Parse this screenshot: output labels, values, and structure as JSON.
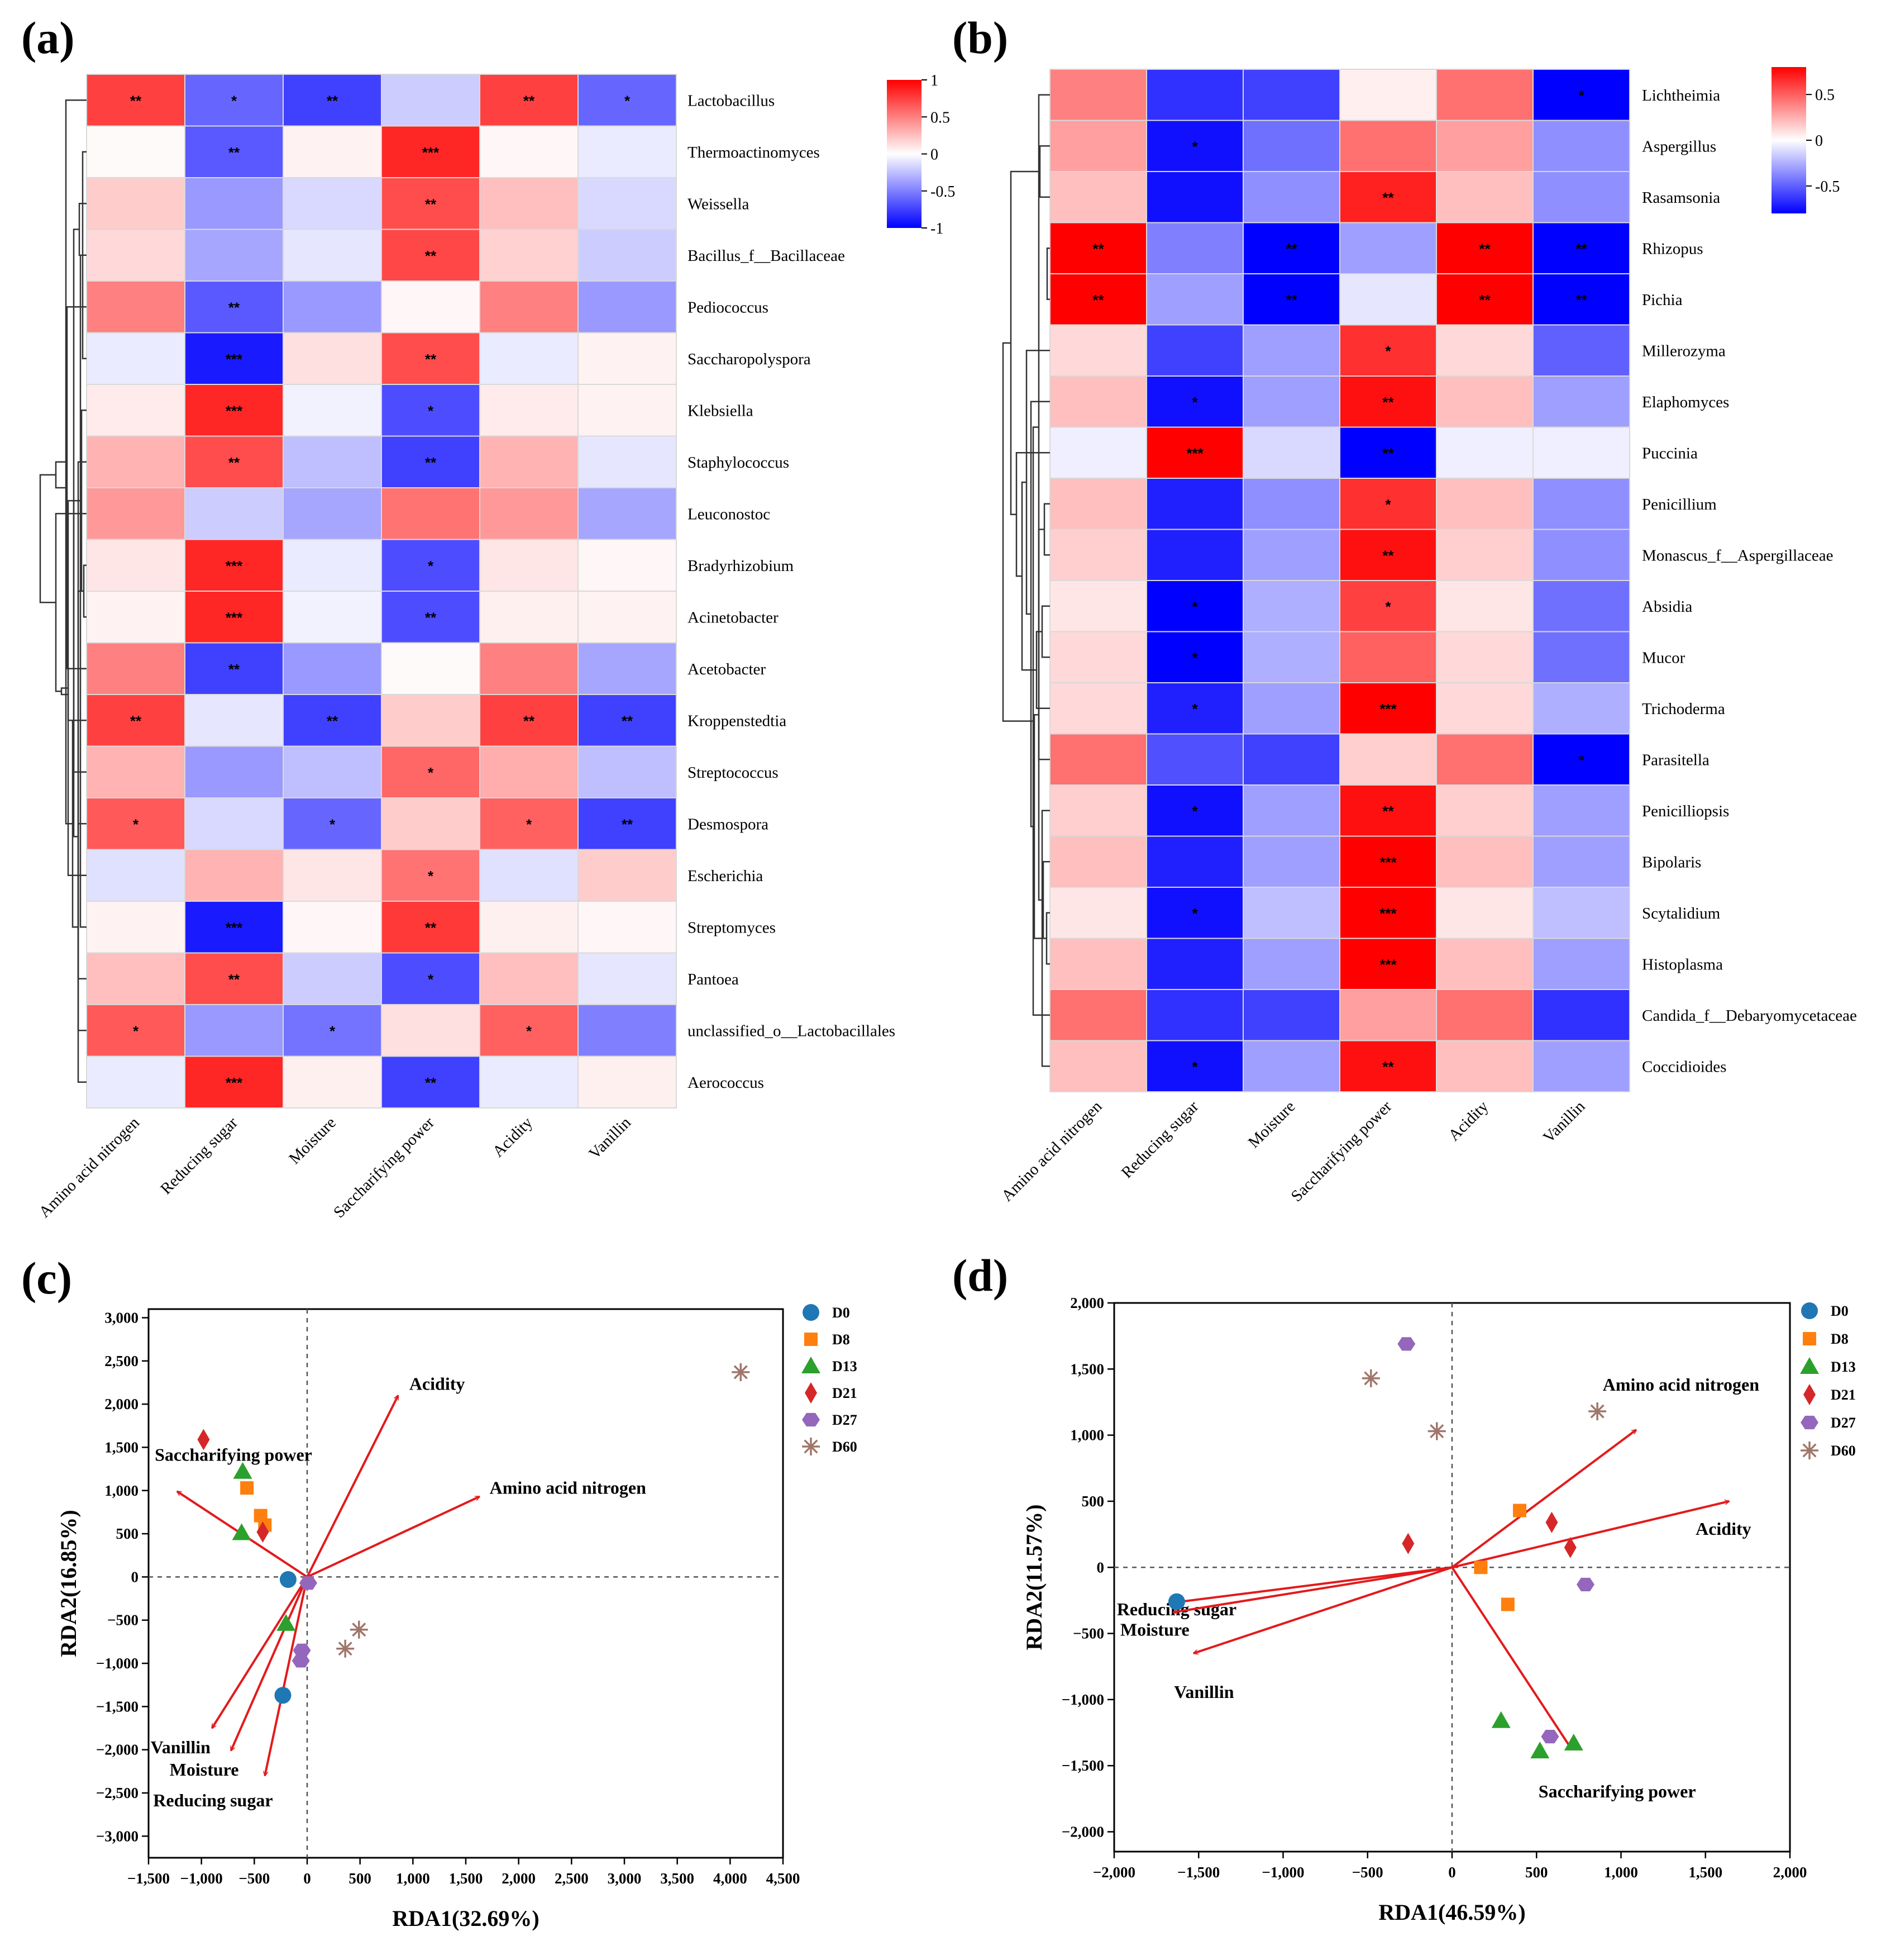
{
  "panels": {
    "a": "(a)",
    "b": "(b)",
    "c": "(c)",
    "d": "(d)"
  },
  "chart_data": [
    {
      "id": "a",
      "type": "heatmap",
      "columns": [
        "Amino acid nitrogen",
        "Reducing sugar",
        "Moisture",
        "Saccharifying power",
        "Acidity",
        "Vanillin"
      ],
      "rows": [
        "Lactobacillus",
        "Thermoactinomyces",
        "Weissella",
        "Bacillus_f__Bacillaceae",
        "Pediococcus",
        "Saccharopolyspora",
        "Klebsiella",
        "Staphylococcus",
        "Leuconostoc",
        "Bradyrhizobium",
        "Acinetobacter",
        "Acetobacter",
        "Kroppenstedtia",
        "Streptococcus",
        "Desmospora",
        "Escherichia",
        "Streptomyces",
        "Pantoea",
        "unclassified_o__Lactobacillales",
        "Aerococcus"
      ],
      "values": [
        [
          0.75,
          -0.6,
          -0.75,
          -0.2,
          0.75,
          -0.6
        ],
        [
          0.02,
          -0.65,
          0.05,
          0.85,
          0.03,
          -0.08
        ],
        [
          0.2,
          -0.4,
          -0.15,
          0.7,
          0.25,
          -0.15
        ],
        [
          0.15,
          -0.35,
          -0.1,
          0.72,
          0.18,
          -0.2
        ],
        [
          0.5,
          -0.65,
          -0.4,
          0.03,
          0.5,
          -0.4
        ],
        [
          -0.08,
          -0.9,
          0.12,
          0.7,
          -0.08,
          0.05
        ],
        [
          0.08,
          0.85,
          -0.05,
          -0.7,
          0.08,
          0.05
        ],
        [
          0.3,
          0.7,
          -0.25,
          -0.75,
          0.3,
          -0.1
        ],
        [
          0.4,
          -0.2,
          -0.35,
          0.55,
          0.4,
          -0.35
        ],
        [
          0.1,
          0.85,
          -0.08,
          -0.7,
          0.1,
          0.03
        ],
        [
          0.05,
          0.85,
          -0.05,
          -0.7,
          0.06,
          0.05
        ],
        [
          0.5,
          -0.75,
          -0.4,
          0.02,
          0.5,
          -0.35
        ],
        [
          0.75,
          -0.1,
          -0.75,
          0.2,
          0.75,
          -0.75
        ],
        [
          0.3,
          -0.4,
          -0.25,
          0.6,
          0.32,
          -0.25
        ],
        [
          0.65,
          -0.15,
          -0.6,
          0.2,
          0.62,
          -0.75
        ],
        [
          -0.12,
          0.3,
          0.1,
          0.55,
          -0.12,
          0.2
        ],
        [
          0.05,
          -0.9,
          0.03,
          0.78,
          0.06,
          0.03
        ],
        [
          0.25,
          0.7,
          -0.2,
          -0.7,
          0.25,
          -0.1
        ],
        [
          0.65,
          -0.4,
          -0.55,
          0.12,
          0.62,
          -0.5
        ],
        [
          -0.08,
          0.85,
          0.06,
          -0.75,
          -0.08,
          0.06
        ]
      ],
      "significance": [
        [
          "**",
          "*",
          "**",
          "",
          "**",
          "*"
        ],
        [
          "",
          "**",
          "",
          "***",
          "",
          ""
        ],
        [
          "",
          "",
          "",
          "**",
          "",
          ""
        ],
        [
          "",
          "",
          "",
          "**",
          "",
          ""
        ],
        [
          "",
          "**",
          "",
          "",
          "",
          ""
        ],
        [
          "",
          "***",
          "",
          "**",
          "",
          ""
        ],
        [
          "",
          "***",
          "",
          "*",
          "",
          ""
        ],
        [
          "",
          "**",
          "",
          "**",
          "",
          ""
        ],
        [
          "",
          "",
          "",
          "",
          "",
          ""
        ],
        [
          "",
          "***",
          "",
          "*",
          "",
          ""
        ],
        [
          "",
          "***",
          "",
          "**",
          "",
          ""
        ],
        [
          "",
          "**",
          "",
          "",
          "",
          ""
        ],
        [
          "**",
          "",
          "**",
          "",
          "**",
          "**"
        ],
        [
          "",
          "",
          "",
          "*",
          "",
          ""
        ],
        [
          "*",
          "",
          "*",
          "",
          "*",
          "**"
        ],
        [
          "",
          "",
          "",
          "*",
          "",
          ""
        ],
        [
          "",
          "***",
          "",
          "**",
          "",
          ""
        ],
        [
          "",
          "**",
          "",
          "*",
          "",
          ""
        ],
        [
          "*",
          "",
          "*",
          "",
          "*",
          ""
        ],
        [
          "",
          "***",
          "",
          "**",
          "",
          ""
        ]
      ],
      "colorbar": {
        "min": -1,
        "max": 1,
        "ticks": [
          "1",
          "0.5",
          "0",
          "-0.5",
          "-1"
        ],
        "low_color": "#0000ff",
        "mid_color": "#ffffff",
        "high_color": "#ff0000"
      }
    },
    {
      "id": "b",
      "type": "heatmap",
      "columns": [
        "Amino acid nitrogen",
        "Reducing sugar",
        "Moisture",
        "Saccharifying power",
        "Acidity",
        "Vanillin"
      ],
      "rows": [
        "Lichtheimia",
        "Aspergillus",
        "Rasamsonia",
        "Rhizopus",
        "Pichia",
        "Millerozyma",
        "Elaphomyces",
        "Puccinia",
        "Penicillium",
        "Monascus_f__Aspergillaceae",
        "Absidia",
        "Mucor",
        "Trichoderma",
        "Parasitella",
        "Penicilliopsis",
        "Bipolaris",
        "Scytalidium",
        "Histoplasma",
        "Candida_f__Debaryomycetaceae",
        "Coccidioides"
      ],
      "values": [
        [
          0.4,
          -0.65,
          -0.6,
          0.05,
          0.45,
          -0.8
        ],
        [
          0.3,
          -0.75,
          -0.45,
          0.45,
          0.3,
          -0.35
        ],
        [
          0.2,
          -0.75,
          -0.35,
          0.7,
          0.2,
          -0.35
        ],
        [
          0.85,
          -0.4,
          -0.85,
          -0.3,
          0.85,
          -0.9
        ],
        [
          0.85,
          -0.3,
          -0.85,
          -0.08,
          0.85,
          -0.9
        ],
        [
          0.12,
          -0.6,
          -0.3,
          0.65,
          0.12,
          -0.5
        ],
        [
          0.2,
          -0.75,
          -0.3,
          0.75,
          0.2,
          -0.3
        ],
        [
          -0.05,
          0.9,
          -0.12,
          -0.85,
          -0.05,
          -0.05
        ],
        [
          0.2,
          -0.7,
          -0.35,
          0.65,
          0.2,
          -0.35
        ],
        [
          0.15,
          -0.7,
          -0.3,
          0.75,
          0.15,
          -0.35
        ],
        [
          0.08,
          -0.8,
          -0.25,
          0.6,
          0.08,
          -0.45
        ],
        [
          0.12,
          -0.8,
          -0.25,
          0.5,
          0.12,
          -0.45
        ],
        [
          0.12,
          -0.7,
          -0.3,
          0.85,
          0.12,
          -0.25
        ],
        [
          0.45,
          -0.55,
          -0.6,
          0.15,
          0.45,
          -0.8
        ],
        [
          0.15,
          -0.75,
          -0.3,
          0.75,
          0.15,
          -0.3
        ],
        [
          0.2,
          -0.7,
          -0.3,
          0.9,
          0.2,
          -0.3
        ],
        [
          0.08,
          -0.75,
          -0.2,
          0.85,
          0.08,
          -0.2
        ],
        [
          0.2,
          -0.7,
          -0.3,
          0.85,
          0.2,
          -0.3
        ],
        [
          0.45,
          -0.65,
          -0.6,
          0.3,
          0.45,
          -0.65
        ],
        [
          0.2,
          -0.75,
          -0.3,
          0.75,
          0.2,
          -0.3
        ]
      ],
      "significance": [
        [
          "",
          "",
          "",
          "",
          "",
          "*"
        ],
        [
          "",
          "*",
          "",
          "",
          "",
          ""
        ],
        [
          "",
          "",
          "",
          "**",
          "",
          ""
        ],
        [
          "**",
          "",
          "**",
          "",
          "**",
          "**"
        ],
        [
          "**",
          "",
          "**",
          "",
          "**",
          "**"
        ],
        [
          "",
          "",
          "",
          "*",
          "",
          ""
        ],
        [
          "",
          "*",
          "",
          "**",
          "",
          ""
        ],
        [
          "",
          "***",
          "",
          "**",
          "",
          ""
        ],
        [
          "",
          "",
          "",
          "*",
          "",
          ""
        ],
        [
          "",
          "",
          "",
          "**",
          "",
          ""
        ],
        [
          "",
          "*",
          "",
          "*",
          "",
          ""
        ],
        [
          "",
          "*",
          "",
          "",
          "",
          ""
        ],
        [
          "",
          "*",
          "",
          "***",
          "",
          ""
        ],
        [
          "",
          "",
          "",
          "",
          "",
          "*"
        ],
        [
          "",
          "*",
          "",
          "**",
          "",
          ""
        ],
        [
          "",
          "",
          "",
          "***",
          "",
          ""
        ],
        [
          "",
          "*",
          "",
          "***",
          "",
          ""
        ],
        [
          "",
          "",
          "",
          "***",
          "",
          ""
        ],
        [
          "",
          "",
          "",
          "",
          "",
          ""
        ],
        [
          "",
          "*",
          "",
          "**",
          "",
          ""
        ]
      ],
      "colorbar": {
        "min": -0.8,
        "max": 0.8,
        "ticks": [
          "0.5",
          "0",
          "-0.5"
        ],
        "low_color": "#0000ff",
        "mid_color": "#ffffff",
        "high_color": "#ff0000"
      }
    },
    {
      "id": "c",
      "type": "scatter",
      "xlabel": "RDA1(32.69%)",
      "ylabel": "RDA2(16.85%)",
      "xlim": [
        -1500,
        4500
      ],
      "ylim": [
        -3250,
        3100
      ],
      "xticks": [
        "−1,500",
        "−1,000",
        "−500",
        "0",
        "500",
        "1,000",
        "1,500",
        "2,000",
        "2,500",
        "3,000",
        "3,500",
        "4,000",
        "4,500"
      ],
      "xtick_values": [
        -1500,
        -1000,
        -500,
        0,
        500,
        1000,
        1500,
        2000,
        2500,
        3000,
        3500,
        4000,
        4500
      ],
      "yticks": [
        "3,000",
        "2,500",
        "2,000",
        "1,500",
        "1,000",
        "500",
        "0",
        "−500",
        "−1,000",
        "−1,500",
        "−2,000",
        "−2,500",
        "−3,000"
      ],
      "ytick_values": [
        3000,
        2500,
        2000,
        1500,
        1000,
        500,
        0,
        -500,
        -1000,
        -1500,
        -2000,
        -2500,
        -3000
      ],
      "series": [
        {
          "name": "D0",
          "marker": "circle",
          "color": "#1f77b4",
          "points": [
            [
              -230,
              -1370
            ],
            [
              -180,
              -30
            ]
          ]
        },
        {
          "name": "D8",
          "marker": "square",
          "color": "#ff7f0e",
          "points": [
            [
              -570,
              1030
            ],
            [
              -440,
              710
            ],
            [
              -400,
              600
            ]
          ]
        },
        {
          "name": "D13",
          "marker": "triangle",
          "color": "#2ca02c",
          "points": [
            [
              -610,
              1220
            ],
            [
              -620,
              510
            ],
            [
              -200,
              -540
            ]
          ]
        },
        {
          "name": "D21",
          "marker": "diamond",
          "color": "#d62728",
          "points": [
            [
              -980,
              1590
            ],
            [
              -420,
              520
            ]
          ]
        },
        {
          "name": "D27",
          "marker": "hexagon",
          "color": "#9467bd",
          "points": [
            [
              10,
              -70
            ],
            [
              -50,
              -850
            ],
            [
              -60,
              -970
            ]
          ]
        },
        {
          "name": "D60",
          "marker": "asterisk",
          "color": "#a0766a",
          "points": [
            [
              4100,
              2370
            ],
            [
              490,
              -610
            ],
            [
              360,
              -830
            ]
          ]
        }
      ],
      "vectors": [
        {
          "label": "Acidity",
          "end": [
            860,
            2100
          ]
        },
        {
          "label": "Amino acid nitrogen",
          "end": [
            1630,
            930
          ]
        },
        {
          "label": "Saccharifying power",
          "end": [
            -1230,
            990
          ]
        },
        {
          "label": "Vanillin",
          "end": [
            -900,
            -1750
          ]
        },
        {
          "label": "Moisture",
          "end": [
            -720,
            -2010
          ]
        },
        {
          "label": "Reducing sugar",
          "end": [
            -400,
            -2300
          ]
        }
      ]
    },
    {
      "id": "d",
      "type": "scatter",
      "xlabel": "RDA1(46.59%)",
      "ylabel": "RDA2(11.57%)",
      "xlim": [
        -2000,
        2000
      ],
      "ylim": [
        -2150,
        2000
      ],
      "xticks": [
        "−2,000",
        "−1,500",
        "−1,000",
        "−500",
        "0",
        "500",
        "1,000",
        "1,500",
        "2,000"
      ],
      "xtick_values": [
        -2000,
        -1500,
        -1000,
        -500,
        0,
        500,
        1000,
        1500,
        2000
      ],
      "yticks": [
        "2,000",
        "1,500",
        "1,000",
        "500",
        "0",
        "−500",
        "−1,000",
        "−1,500",
        "−2,000"
      ],
      "ytick_values": [
        2000,
        1500,
        1000,
        500,
        0,
        -500,
        -1000,
        -1500,
        -2000
      ],
      "series": [
        {
          "name": "D0",
          "marker": "circle",
          "color": "#1f77b4",
          "points": [
            [
              -1630,
              -260
            ]
          ]
        },
        {
          "name": "D8",
          "marker": "square",
          "color": "#ff7f0e",
          "points": [
            [
              400,
              430
            ],
            [
              170,
              0
            ],
            [
              330,
              -280
            ]
          ]
        },
        {
          "name": "D13",
          "marker": "triangle",
          "color": "#2ca02c",
          "points": [
            [
              290,
              -1160
            ],
            [
              520,
              -1390
            ],
            [
              720,
              -1330
            ]
          ]
        },
        {
          "name": "D21",
          "marker": "diamond",
          "color": "#d62728",
          "points": [
            [
              -260,
              180
            ],
            [
              590,
              340
            ],
            [
              700,
              150
            ]
          ]
        },
        {
          "name": "D27",
          "marker": "hexagon",
          "color": "#9467bd",
          "points": [
            [
              -270,
              1690
            ],
            [
              790,
              -130
            ],
            [
              580,
              -1280
            ]
          ]
        },
        {
          "name": "D60",
          "marker": "asterisk",
          "color": "#a0766a",
          "points": [
            [
              -480,
              1430
            ],
            [
              -90,
              1030
            ],
            [
              860,
              1180
            ]
          ]
        }
      ],
      "vectors": [
        {
          "label": "Amino acid nitrogen",
          "end": [
            1090,
            1040
          ]
        },
        {
          "label": "Acidity",
          "end": [
            1640,
            500
          ]
        },
        {
          "label": "Reducing sugar",
          "end": [
            -1670,
            -270
          ]
        },
        {
          "label": "Moisture",
          "end": [
            -1650,
            -340
          ]
        },
        {
          "label": "Vanillin",
          "end": [
            -1530,
            -650
          ]
        },
        {
          "label": "Saccharifying power",
          "end": [
            710,
            -1380
          ]
        }
      ]
    }
  ]
}
